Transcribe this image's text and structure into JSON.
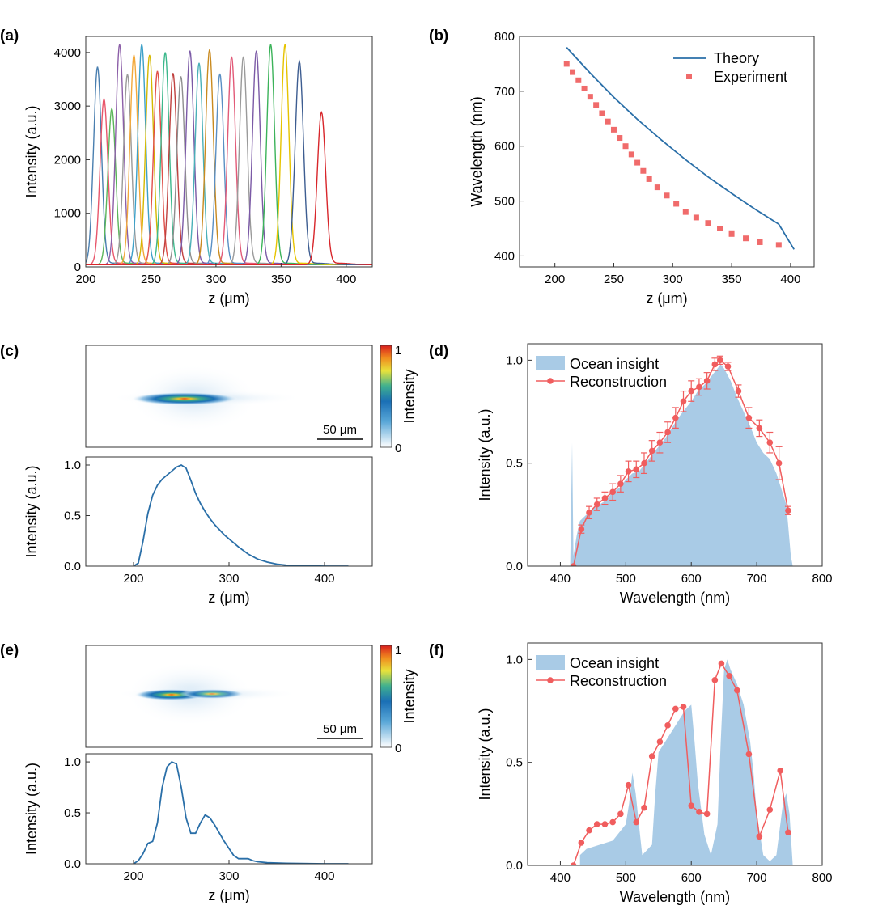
{
  "panel_labels": [
    "(a)",
    "(b)",
    "(c)",
    "(d)",
    "(e)",
    "(f)"
  ],
  "colorbar": {
    "label": "Intensity",
    "max_label": "1",
    "min_label": "0",
    "scale_bar": "50 μm"
  },
  "chart_data": [
    {
      "id": "a",
      "type": "line",
      "xlabel": "z (μm)",
      "ylabel": "Intensity (a.u.)",
      "xlim": [
        200,
        420
      ],
      "ylim": [
        0,
        4300
      ],
      "xticks": [
        200,
        250,
        300,
        350,
        400
      ],
      "yticks": [
        0,
        1000,
        2000,
        3000,
        4000
      ],
      "series": [
        {
          "center": 209,
          "peak": 3680,
          "sigma": 3.0,
          "color": "#4a7fb0"
        },
        {
          "center": 214,
          "peak": 3080,
          "sigma": 3.0,
          "color": "#e8566b"
        },
        {
          "center": 220,
          "peak": 2900,
          "sigma": 3.0,
          "color": "#5bb55a"
        },
        {
          "center": 226,
          "peak": 4100,
          "sigma": 3.0,
          "color": "#8c5fa8"
        },
        {
          "center": 232,
          "peak": 3540,
          "sigma": 3.0,
          "color": "#9a9a9a"
        },
        {
          "center": 237,
          "peak": 3900,
          "sigma": 3.0,
          "color": "#f2a93b"
        },
        {
          "center": 243,
          "peak": 4100,
          "sigma": 3.0,
          "color": "#3ca0c8"
        },
        {
          "center": 249,
          "peak": 3900,
          "sigma": 3.0,
          "color": "#d4b800"
        },
        {
          "center": 255,
          "peak": 3600,
          "sigma": 3.0,
          "color": "#e0504a"
        },
        {
          "center": 261,
          "peak": 3950,
          "sigma": 3.0,
          "color": "#3db88c"
        },
        {
          "center": 267,
          "peak": 3560,
          "sigma": 3.0,
          "color": "#c0413f"
        },
        {
          "center": 273,
          "peak": 3500,
          "sigma": 3.0,
          "color": "#8f8f8f"
        },
        {
          "center": 280,
          "peak": 3980,
          "sigma": 3.0,
          "color": "#7b5aa6"
        },
        {
          "center": 287,
          "peak": 3750,
          "sigma": 3.0,
          "color": "#4ab0b8"
        },
        {
          "center": 295,
          "peak": 4000,
          "sigma": 3.0,
          "color": "#c98a1f"
        },
        {
          "center": 303,
          "peak": 3550,
          "sigma": 3.0,
          "color": "#5a8fc4"
        },
        {
          "center": 312,
          "peak": 3870,
          "sigma": 3.0,
          "color": "#e25a78"
        },
        {
          "center": 321,
          "peak": 3870,
          "sigma": 3.0,
          "color": "#9a9a9a"
        },
        {
          "center": 331,
          "peak": 3980,
          "sigma": 3.0,
          "color": "#7b5aa6"
        },
        {
          "center": 342,
          "peak": 4100,
          "sigma": 3.0,
          "color": "#3cb35a"
        },
        {
          "center": 353,
          "peak": 4100,
          "sigma": 3.0,
          "color": "#e6c300"
        },
        {
          "center": 364,
          "peak": 3780,
          "sigma": 3.2,
          "color": "#3d5d91"
        },
        {
          "center": 381,
          "peak": 2830,
          "sigma": 3.2,
          "color": "#d8262b"
        }
      ]
    },
    {
      "id": "b",
      "type": "scatter",
      "xlabel": "z (μm)",
      "ylabel": "Wavelength (nm)",
      "xlim": [
        170,
        420
      ],
      "ylim": [
        380,
        800
      ],
      "xticks": [
        200,
        250,
        300,
        350,
        400
      ],
      "yticks": [
        400,
        500,
        600,
        700,
        800
      ],
      "series": [
        {
          "name": "Theory",
          "kind": "line",
          "color": "#2a6fa8",
          "x": [
            210,
            230,
            250,
            270,
            290,
            310,
            330,
            350,
            370,
            390,
            403
          ],
          "y": [
            780,
            733,
            689,
            649,
            612,
            577,
            544,
            514,
            485,
            458,
            412
          ]
        },
        {
          "name": "Experiment",
          "kind": "marker",
          "color": "#f06b6b",
          "x": [
            210,
            215,
            220,
            225,
            230,
            235,
            240,
            245,
            250,
            255,
            260,
            265,
            270,
            275,
            280,
            287,
            295,
            303,
            311,
            320,
            330,
            340,
            350,
            362,
            374,
            390
          ],
          "y": [
            750,
            735,
            720,
            705,
            690,
            675,
            660,
            645,
            630,
            615,
            600,
            585,
            570,
            555,
            540,
            525,
            510,
            495,
            480,
            470,
            460,
            450,
            440,
            432,
            425,
            420
          ]
        }
      ]
    },
    {
      "id": "c",
      "type": "line",
      "xlabel": "z (μm)",
      "ylabel": "Intensity (a.u.)",
      "xlim": [
        150,
        450
      ],
      "ylim": [
        0,
        1.08
      ],
      "xticks": [
        200,
        300,
        400
      ],
      "yticks": [
        0.0,
        0.5,
        1.0
      ],
      "tick_labels_y": [
        "0.0",
        "0.5",
        "1.0"
      ],
      "series": [
        {
          "color": "#2a6fa8",
          "x": [
            200,
            205,
            210,
            215,
            220,
            225,
            230,
            235,
            240,
            245,
            250,
            255,
            260,
            265,
            270,
            275,
            280,
            285,
            290,
            295,
            300,
            310,
            320,
            330,
            340,
            350,
            360,
            380,
            400,
            425
          ],
          "y": [
            0.0,
            0.03,
            0.25,
            0.52,
            0.7,
            0.8,
            0.86,
            0.9,
            0.94,
            0.98,
            1.0,
            0.97,
            0.85,
            0.72,
            0.62,
            0.54,
            0.47,
            0.41,
            0.36,
            0.31,
            0.27,
            0.19,
            0.12,
            0.07,
            0.04,
            0.02,
            0.01,
            0.005,
            0.0,
            0.0
          ]
        }
      ]
    },
    {
      "id": "d",
      "type": "area",
      "xlabel": "Wavelength (nm)",
      "ylabel": "Intensity (a.u.)",
      "xlim": [
        350,
        800
      ],
      "ylim": [
        0,
        1.08
      ],
      "xticks": [
        400,
        500,
        600,
        700,
        800
      ],
      "yticks": [
        0.0,
        0.5,
        1.0
      ],
      "tick_labels_y": [
        "0.0",
        "0.5",
        "1.0"
      ],
      "legend": [
        "Ocean insight",
        "Reconstruction"
      ],
      "series": [
        {
          "name": "Ocean insight",
          "kind": "area",
          "color": "#a9cbe6",
          "x": [
            415,
            418,
            420,
            425,
            430,
            440,
            450,
            460,
            470,
            480,
            490,
            500,
            510,
            520,
            530,
            540,
            550,
            560,
            570,
            580,
            590,
            600,
            610,
            620,
            630,
            640,
            645,
            650,
            660,
            670,
            680,
            690,
            700,
            710,
            720,
            730,
            740,
            745,
            748,
            752,
            755
          ],
          "y": [
            0,
            0.6,
            0.05,
            0.15,
            0.22,
            0.25,
            0.28,
            0.3,
            0.32,
            0.36,
            0.38,
            0.42,
            0.45,
            0.46,
            0.5,
            0.54,
            0.58,
            0.62,
            0.67,
            0.72,
            0.76,
            0.8,
            0.85,
            0.88,
            0.92,
            0.96,
            0.98,
            0.96,
            0.9,
            0.82,
            0.75,
            0.68,
            0.6,
            0.55,
            0.52,
            0.45,
            0.35,
            0.3,
            0.2,
            0.05,
            0
          ]
        },
        {
          "name": "Reconstruction",
          "kind": "line-marker",
          "color": "#f05d5e",
          "x": [
            420,
            432,
            444,
            456,
            468,
            480,
            492,
            504,
            516,
            528,
            540,
            552,
            564,
            576,
            588,
            600,
            612,
            624,
            636,
            644,
            656,
            672,
            688,
            704,
            720,
            734,
            748
          ],
          "y": [
            0.0,
            0.18,
            0.26,
            0.3,
            0.33,
            0.36,
            0.4,
            0.46,
            0.47,
            0.5,
            0.56,
            0.6,
            0.65,
            0.72,
            0.8,
            0.85,
            0.87,
            0.9,
            0.98,
            1.0,
            0.97,
            0.85,
            0.72,
            0.67,
            0.6,
            0.5,
            0.27
          ],
          "err": [
            0,
            0.02,
            0.03,
            0.03,
            0.03,
            0.04,
            0.04,
            0.05,
            0.04,
            0.05,
            0.05,
            0.05,
            0.05,
            0.05,
            0.05,
            0.05,
            0.04,
            0.04,
            0.03,
            0.02,
            0.02,
            0.03,
            0.05,
            0.04,
            0.05,
            0.08,
            0.02
          ]
        }
      ]
    },
    {
      "id": "e",
      "type": "line",
      "xlabel": "z (μm)",
      "ylabel": "Intensity (a.u.)",
      "xlim": [
        150,
        450
      ],
      "ylim": [
        0,
        1.08
      ],
      "xticks": [
        200,
        300,
        400
      ],
      "yticks": [
        0.0,
        0.5,
        1.0
      ],
      "tick_labels_y": [
        "0.0",
        "0.5",
        "1.0"
      ],
      "series": [
        {
          "color": "#2a6fa8",
          "x": [
            200,
            205,
            210,
            215,
            220,
            225,
            230,
            235,
            240,
            245,
            250,
            255,
            260,
            265,
            270,
            275,
            280,
            285,
            290,
            295,
            300,
            305,
            310,
            315,
            320,
            325,
            330,
            340,
            360,
            400,
            425
          ],
          "y": [
            0.0,
            0.03,
            0.1,
            0.2,
            0.22,
            0.4,
            0.75,
            0.95,
            1.0,
            0.98,
            0.75,
            0.45,
            0.3,
            0.3,
            0.4,
            0.48,
            0.45,
            0.38,
            0.3,
            0.22,
            0.15,
            0.08,
            0.05,
            0.05,
            0.05,
            0.03,
            0.02,
            0.01,
            0.005,
            0.0,
            0.0
          ]
        }
      ]
    },
    {
      "id": "f",
      "type": "area",
      "xlabel": "Wavelength (nm)",
      "ylabel": "Intensity (a.u.)",
      "xlim": [
        350,
        800
      ],
      "ylim": [
        0,
        1.08
      ],
      "xticks": [
        400,
        500,
        600,
        700,
        800
      ],
      "yticks": [
        0.0,
        0.5,
        1.0
      ],
      "tick_labels_y": [
        "0.0",
        "0.5",
        "1.0"
      ],
      "legend": [
        "Ocean insight",
        "Reconstruction"
      ],
      "series": [
        {
          "name": "Ocean insight",
          "kind": "area",
          "color": "#a9cbe6",
          "x": [
            430,
            440,
            460,
            480,
            500,
            505,
            510,
            515,
            520,
            525,
            540,
            545,
            550,
            560,
            570,
            580,
            590,
            600,
            605,
            610,
            620,
            630,
            640,
            645,
            650,
            655,
            660,
            670,
            680,
            690,
            695,
            700,
            710,
            720,
            730,
            740,
            745,
            750,
            755
          ],
          "y": [
            0.05,
            0.08,
            0.1,
            0.12,
            0.2,
            0.3,
            0.45,
            0.35,
            0.2,
            0.05,
            0.1,
            0.35,
            0.55,
            0.6,
            0.65,
            0.7,
            0.75,
            0.78,
            0.6,
            0.4,
            0.15,
            0.05,
            0.2,
            0.6,
            0.95,
            1.0,
            0.95,
            0.88,
            0.78,
            0.6,
            0.45,
            0.25,
            0.05,
            0.02,
            0.05,
            0.3,
            0.35,
            0.25,
            0
          ]
        },
        {
          "name": "Reconstruction",
          "kind": "line-marker",
          "color": "#f05d5e",
          "x": [
            420,
            432,
            444,
            456,
            468,
            480,
            492,
            504,
            516,
            528,
            540,
            552,
            564,
            576,
            588,
            600,
            612,
            624,
            636,
            646,
            658,
            670,
            688,
            704,
            720,
            736,
            748
          ],
          "y": [
            0.0,
            0.11,
            0.17,
            0.2,
            0.2,
            0.21,
            0.25,
            0.39,
            0.21,
            0.28,
            0.53,
            0.6,
            0.68,
            0.76,
            0.77,
            0.29,
            0.26,
            0.25,
            0.9,
            0.98,
            0.92,
            0.85,
            0.54,
            0.14,
            0.27,
            0.46,
            0.16
          ]
        }
      ]
    }
  ]
}
